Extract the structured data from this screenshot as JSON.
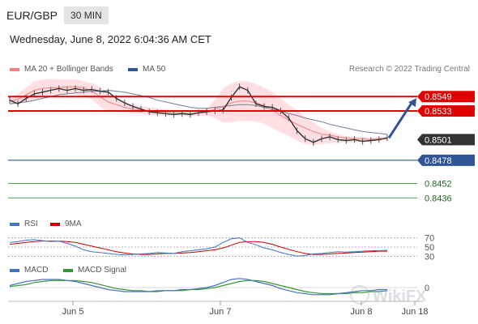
{
  "header": {
    "symbol": "EUR/GBP",
    "timeframe": "30 MIN"
  },
  "date_text": "Wednesday, June 8, 2022 6:04:36 AM CET",
  "legend_main": [
    {
      "label": "MA 20 + Bollinger Bands",
      "color": "#f08080"
    },
    {
      "label": "MA 50",
      "color": "#2f5597"
    }
  ],
  "credit": "Research © 2022 Trading Central",
  "legend_rsi": [
    {
      "label": "RSI",
      "color": "#4472c4"
    },
    {
      "label": "9MA",
      "color": "#cc0000"
    }
  ],
  "legend_macd": [
    {
      "label": "MACD",
      "color": "#4472c4"
    },
    {
      "label": "MACD Signal",
      "color": "#339933"
    }
  ],
  "watermark": "WikiFX",
  "colors": {
    "resistance": "#e00000",
    "support": "#2f5597",
    "target": "#339933",
    "price": "#333333",
    "arrow": "#2f5597"
  },
  "chart_data": {
    "type": "line",
    "title": "EUR/GBP",
    "x_ticks": [
      "Jun 5",
      "Jun 7",
      "Jun 8",
      "Jun 18"
    ],
    "ylim": [
      0.842,
      0.857
    ],
    "price_series": [
      0.8545,
      0.8541,
      0.8547,
      0.8552,
      0.8554,
      0.8556,
      0.8558,
      0.8556,
      0.8558,
      0.8556,
      0.8557,
      0.8555,
      0.8554,
      0.8547,
      0.8542,
      0.8538,
      0.8535,
      0.8532,
      0.8531,
      0.853,
      0.8529,
      0.853,
      0.8529,
      0.8531,
      0.8532,
      0.8533,
      0.8534,
      0.8548,
      0.856,
      0.8556,
      0.8541,
      0.8538,
      0.8537,
      0.8533,
      0.8525,
      0.8511,
      0.8502,
      0.8498,
      0.8502,
      0.8504,
      0.8501,
      0.85,
      0.8501,
      0.8499,
      0.85,
      0.8501,
      0.8503
    ],
    "ma20": [
      0.8544,
      0.8546,
      0.8551,
      0.8556,
      0.8558,
      0.8559,
      0.8559,
      0.856,
      0.856,
      0.8559,
      0.8555,
      0.8549,
      0.8543,
      0.854,
      0.8537,
      0.8535,
      0.8534,
      0.8533,
      0.8532,
      0.8532,
      0.8531,
      0.8531,
      0.853,
      0.8531,
      0.8532,
      0.8535,
      0.8538,
      0.8542,
      0.8544,
      0.8544,
      0.8542,
      0.8539,
      0.8534,
      0.8528,
      0.8523,
      0.8518,
      0.8514,
      0.851,
      0.8507,
      0.8506,
      0.8504,
      0.8503,
      0.8502,
      0.8502,
      0.8501,
      0.8502,
      0.8502
    ],
    "ma50": [
      0.8541,
      0.8542,
      0.8543,
      0.8545,
      0.8547,
      0.8549,
      0.8551,
      0.8552,
      0.8553,
      0.8554,
      0.8555,
      0.8555,
      0.8556,
      0.8555,
      0.8554,
      0.8552,
      0.855,
      0.8548,
      0.8545,
      0.8543,
      0.8541,
      0.8539,
      0.8537,
      0.8536,
      0.8536,
      0.8537,
      0.8538,
      0.8539,
      0.854,
      0.854,
      0.8539,
      0.8537,
      0.8535,
      0.8533,
      0.853,
      0.8528,
      0.8525,
      0.8523,
      0.8521,
      0.8518,
      0.8516,
      0.8514,
      0.8512,
      0.851,
      0.8509,
      0.8508,
      0.8507
    ],
    "bb_upper": [
      0.8548,
      0.8552,
      0.8559,
      0.8566,
      0.8568,
      0.8569,
      0.8568,
      0.8568,
      0.8568,
      0.8566,
      0.8564,
      0.856,
      0.8554,
      0.8548,
      0.8543,
      0.854,
      0.8538,
      0.8537,
      0.8536,
      0.8535,
      0.8534,
      0.8533,
      0.8533,
      0.8534,
      0.8536,
      0.8545,
      0.8558,
      0.8564,
      0.8566,
      0.8566,
      0.8563,
      0.8559,
      0.8554,
      0.8547,
      0.854,
      0.8534,
      0.8527,
      0.852,
      0.8514,
      0.851,
      0.8507,
      0.8505,
      0.8504,
      0.8504,
      0.8503,
      0.8504,
      0.8504
    ],
    "bb_lower": [
      0.854,
      0.854,
      0.8543,
      0.8546,
      0.8548,
      0.855,
      0.8551,
      0.8552,
      0.8551,
      0.855,
      0.8546,
      0.8538,
      0.8532,
      0.8532,
      0.8531,
      0.853,
      0.853,
      0.8529,
      0.8528,
      0.8528,
      0.8528,
      0.8528,
      0.8527,
      0.8528,
      0.8528,
      0.8525,
      0.852,
      0.852,
      0.8522,
      0.8522,
      0.8521,
      0.8519,
      0.8514,
      0.8509,
      0.8505,
      0.85,
      0.8496,
      0.8495,
      0.8496,
      0.8497,
      0.8498,
      0.8498,
      0.8498,
      0.8499,
      0.8499,
      0.85,
      0.85
    ],
    "levels": {
      "resistance": [
        0.8549,
        0.8533
      ],
      "current": 0.8501,
      "support": [
        0.8478
      ],
      "targets": [
        0.8452,
        0.8436
      ]
    },
    "projection": {
      "from": 0.8501,
      "to": 0.8549
    },
    "rsi": {
      "levels": [
        70,
        50,
        30
      ],
      "ylim": [
        20,
        80
      ],
      "rsi": [
        60,
        62,
        65,
        66,
        64,
        62,
        63,
        58,
        52,
        44,
        40,
        38,
        36,
        34,
        33,
        34,
        35,
        36,
        38,
        37,
        36,
        40,
        42,
        44,
        46,
        50,
        60,
        68,
        70,
        60,
        55,
        48,
        44,
        38,
        34,
        30,
        32,
        35,
        36,
        38,
        40,
        39,
        40,
        41,
        42,
        42,
        43
      ],
      "ma9": [
        56,
        58,
        60,
        62,
        63,
        63,
        63,
        62,
        60,
        56,
        52,
        48,
        44,
        40,
        37,
        35,
        34,
        34,
        35,
        36,
        36,
        37,
        38,
        40,
        42,
        44,
        48,
        54,
        60,
        62,
        62,
        60,
        56,
        50,
        45,
        40,
        36,
        34,
        34,
        35,
        36,
        37,
        38,
        39,
        40,
        41,
        41
      ]
    },
    "macd": {
      "zero": 0,
      "ylim": [
        -0.0012,
        0.0012
      ],
      "macd": [
        0.0002,
        0.0004,
        0.0006,
        0.0007,
        0.0008,
        0.0008,
        0.0008,
        0.0007,
        0.0006,
        0.0004,
        0.0002,
        0.0,
        -0.0002,
        -0.0003,
        -0.0004,
        -0.0004,
        -0.0004,
        -0.0004,
        -0.0003,
        -0.0003,
        -0.0003,
        -0.0002,
        -0.0002,
        -0.0001,
        0.0,
        0.0002,
        0.0005,
        0.0008,
        0.0009,
        0.0008,
        0.0006,
        0.0004,
        0.0002,
        -0.0001,
        -0.0003,
        -0.0005,
        -0.0006,
        -0.0007,
        -0.0007,
        -0.0007,
        -0.0006,
        -0.0005,
        -0.0004,
        -0.0003,
        -0.0003,
        -0.0002,
        -0.0002
      ],
      "signal": [
        0.0001,
        0.0002,
        0.0003,
        0.0005,
        0.0006,
        0.0007,
        0.0007,
        0.0007,
        0.0007,
        0.0006,
        0.0005,
        0.0003,
        0.0001,
        -0.0001,
        -0.0002,
        -0.0003,
        -0.0003,
        -0.0004,
        -0.0004,
        -0.0003,
        -0.0003,
        -0.0003,
        -0.0002,
        -0.0002,
        -0.0001,
        0.0,
        0.0002,
        0.0004,
        0.0006,
        0.0007,
        0.0007,
        0.0006,
        0.0004,
        0.0002,
        0.0,
        -0.0002,
        -0.0004,
        -0.0005,
        -0.0006,
        -0.0006,
        -0.0006,
        -0.0006,
        -0.0005,
        -0.0005,
        -0.0004,
        -0.0004,
        -0.0003
      ]
    }
  }
}
